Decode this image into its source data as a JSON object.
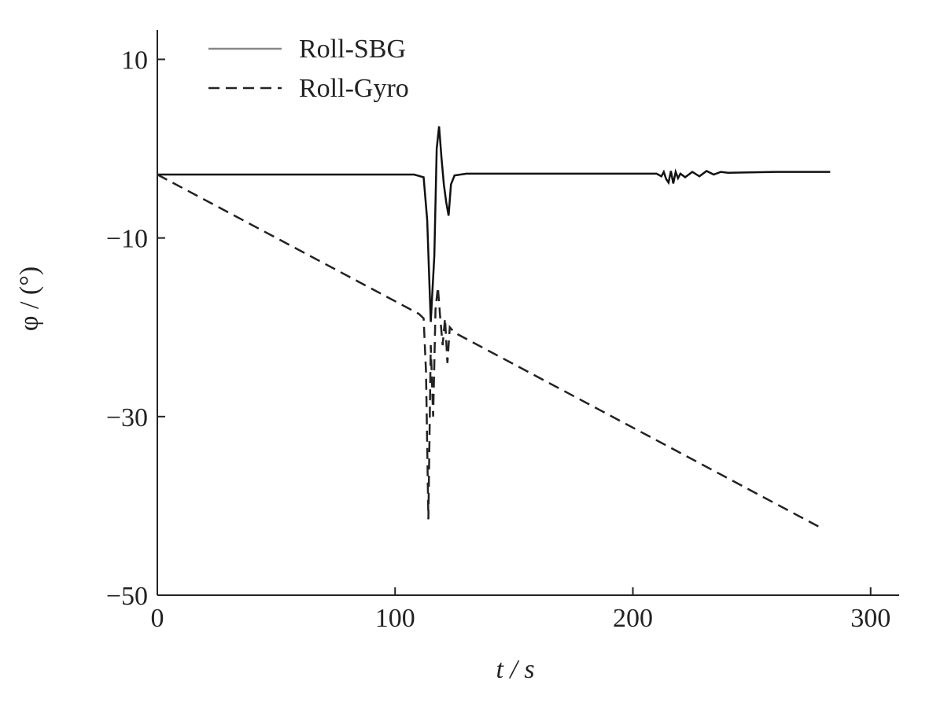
{
  "chart_data": {
    "type": "line",
    "xlabel": "t / s",
    "ylabel": "φ / (°)",
    "xlim": [
      0,
      312
    ],
    "ylim": [
      -50,
      13.3
    ],
    "xticks": [
      0,
      100,
      200,
      300
    ],
    "yticks": [
      10,
      {
        "value": -10,
        "label": "−10"
      },
      {
        "value": -30,
        "label": "−30"
      },
      {
        "value": -50,
        "label": "−50"
      }
    ],
    "legend": "top-left",
    "series": [
      {
        "name": "Roll-SBG",
        "color": "#111111",
        "legend_color": "#888888",
        "style": "solid",
        "x": [
          0,
          108,
          112,
          113.5,
          115,
          116.5,
          117.5,
          118.5,
          119.5,
          120.5,
          121.5,
          122.5,
          123.5,
          125,
          130,
          210,
          212,
          213,
          214,
          215,
          216,
          217,
          218,
          219,
          220,
          222,
          225,
          228,
          231,
          234,
          237,
          240,
          260,
          283
        ],
        "values": [
          -2.9,
          -2.9,
          -3.2,
          -8,
          -19.4,
          -12,
          0,
          2.5,
          -1,
          -4,
          -6,
          -7.5,
          -4,
          -3,
          -2.8,
          -2.8,
          -3.1,
          -2.6,
          -3.4,
          -3.8,
          -2.5,
          -3.9,
          -2.6,
          -3.3,
          -2.8,
          -3.2,
          -2.6,
          -3.1,
          -2.5,
          -2.9,
          -2.6,
          -2.7,
          -2.6,
          -2.6
        ]
      },
      {
        "name": "Roll-Gyro",
        "color": "#222222",
        "legend_color": "#222222",
        "style": "dashed",
        "x": [
          0,
          110,
          112,
          113,
          114,
          115,
          116,
          117,
          118,
          119,
          120,
          121,
          122,
          123,
          125,
          278
        ],
        "values": [
          -2.9,
          -18.5,
          -19,
          -25,
          -41.5,
          -22,
          -30,
          -18,
          -15.5,
          -19,
          -22,
          -19,
          -24,
          -20,
          -20.6,
          -42.3
        ]
      }
    ]
  }
}
